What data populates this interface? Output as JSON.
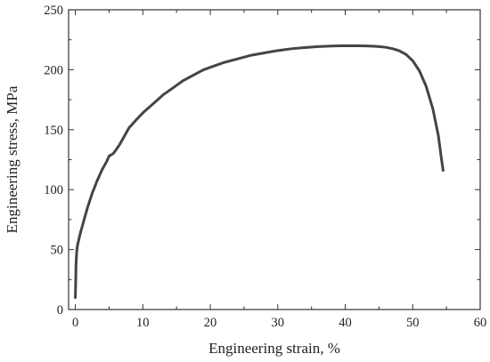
{
  "chart_data": {
    "type": "line",
    "title": "",
    "xlabel": "Engineering strain, %",
    "ylabel": "Engineering stress, MPa",
    "xlim": [
      -1,
      60
    ],
    "ylim": [
      0,
      250
    ],
    "xticks": [
      "0",
      "10",
      "20",
      "30",
      "40",
      "50",
      "60"
    ],
    "yticks": [
      "0",
      "50",
      "100",
      "150",
      "200",
      "250"
    ],
    "grid": false,
    "legend": "none",
    "line_color": "#444444",
    "series": [
      {
        "x": [
          0.0,
          0.05,
          0.1,
          0.2,
          0.3,
          0.5,
          0.8,
          1.2,
          1.8,
          2.5,
          3.2,
          4.0,
          4.6,
          5.0,
          5.3,
          5.6,
          6.0,
          6.5,
          7.0,
          7.5,
          8.0,
          8.2,
          8.5,
          9.0,
          10.0,
          11.0,
          12.0,
          13.0,
          14.0,
          15.0,
          16.0,
          17.0,
          18.0,
          19.0,
          20.0,
          22.0,
          24.0,
          26.0,
          28.0,
          30.0,
          32.0,
          34.0,
          36.0,
          38.0,
          40.0,
          42.0,
          43.0,
          44.0,
          45.0,
          46.0,
          47.0,
          48.0,
          49.0,
          50.0,
          51.0,
          52.0,
          53.0,
          53.8,
          54.2,
          54.5
        ],
        "y": [
          10,
          22,
          38,
          48,
          53,
          58,
          65,
          73,
          85,
          97,
          107,
          117,
          123,
          128,
          129,
          130,
          133,
          137,
          142,
          147,
          152,
          153,
          155,
          158,
          164,
          169,
          174,
          179,
          183,
          187,
          191,
          194,
          197,
          200,
          202,
          206,
          209,
          212,
          214,
          216,
          217.5,
          218.5,
          219.3,
          219.8,
          220,
          220,
          219.9,
          219.7,
          219.3,
          218.7,
          217.6,
          215.8,
          212.8,
          207.5,
          199,
          186,
          167,
          145,
          128,
          116
        ]
      }
    ]
  }
}
